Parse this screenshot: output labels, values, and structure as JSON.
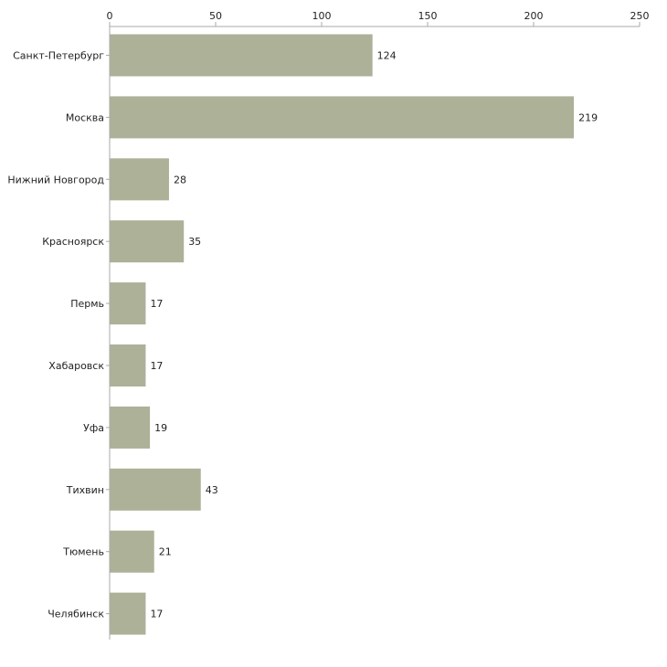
{
  "chart_data": {
    "type": "bar",
    "orientation": "horizontal",
    "title": "",
    "xlabel": "",
    "ylabel": "",
    "xlim": [
      0,
      250
    ],
    "ticks": [
      0,
      50,
      100,
      150,
      200,
      250
    ],
    "tick_labels": [
      "0",
      "50",
      "100",
      "150",
      "200",
      "250"
    ],
    "grid": false,
    "axis_position": "top",
    "bar_color": "#acb198",
    "categories": [
      "Санкт-Петербург",
      "Москва",
      "Нижний Новгород",
      "Красноярск",
      "Пермь",
      "Хабаровск",
      "Уфа",
      "Тихвин",
      "Тюмень",
      "Челябинск"
    ],
    "values": [
      124,
      219,
      28,
      35,
      17,
      17,
      19,
      43,
      21,
      17
    ],
    "value_labels": [
      "124",
      "219",
      "28",
      "35",
      "17",
      "17",
      "19",
      "43",
      "21",
      "17"
    ]
  }
}
